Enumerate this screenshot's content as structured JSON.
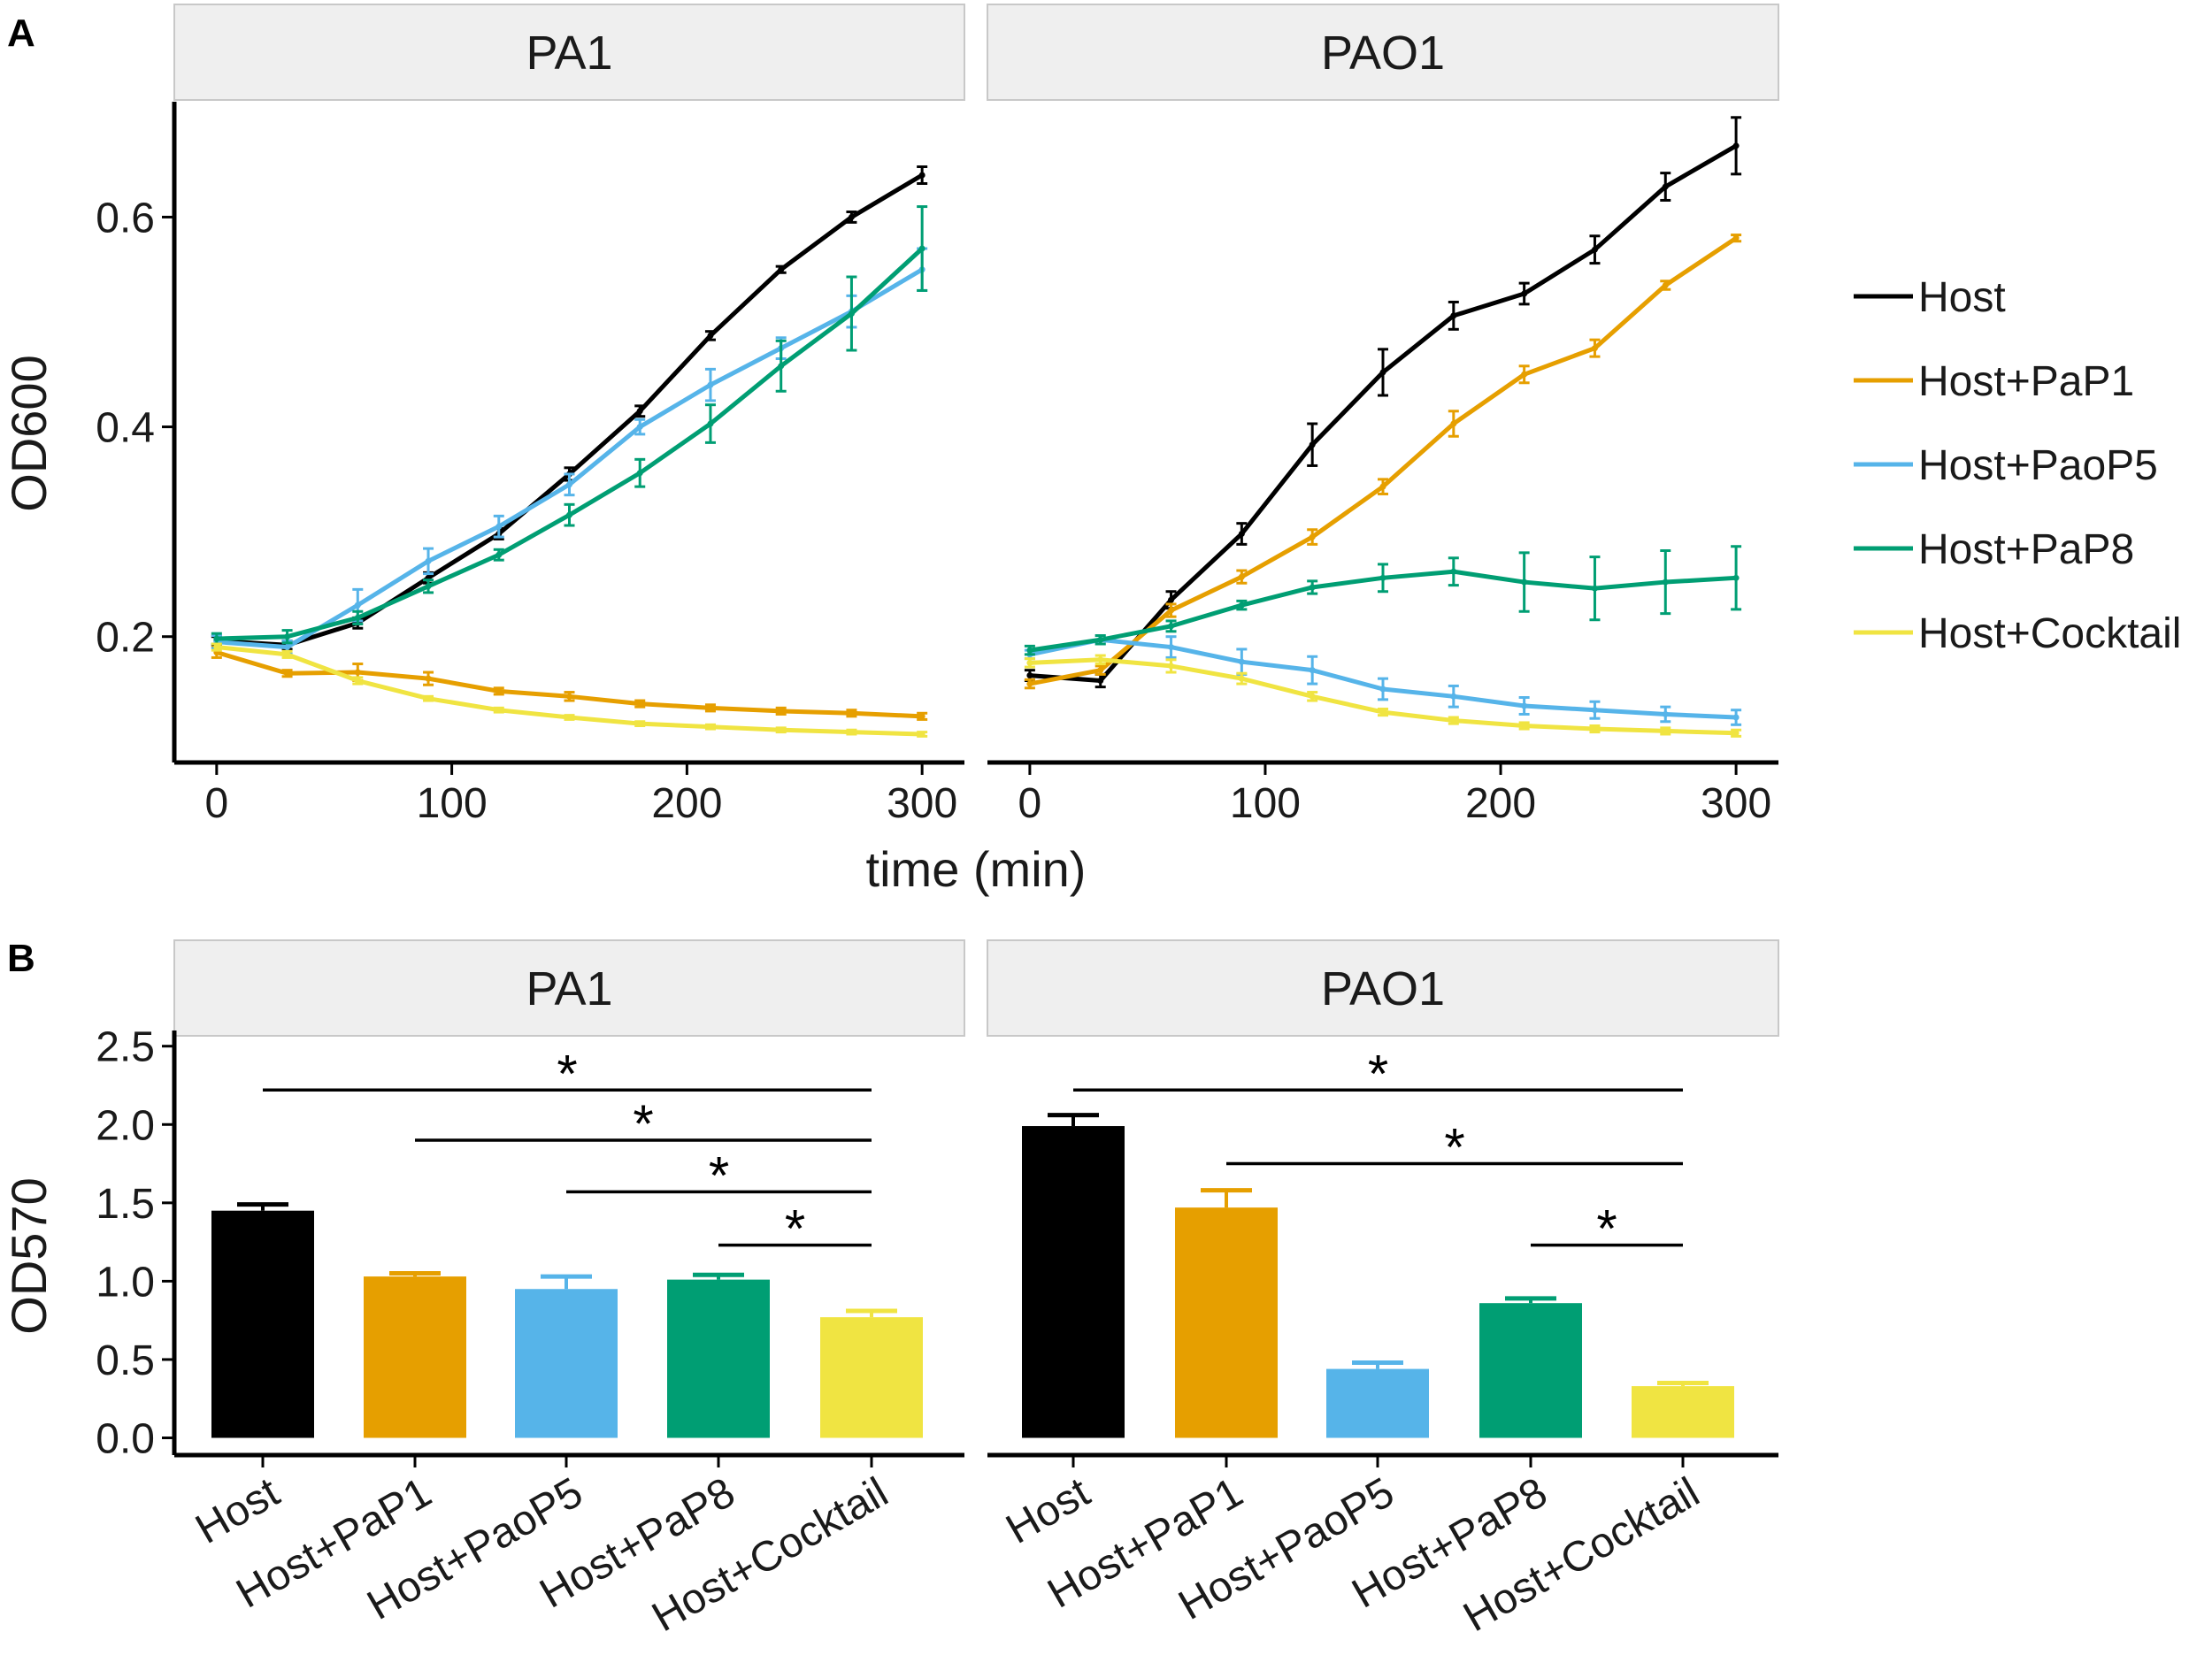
{
  "labels": {
    "panel_a": "A",
    "panel_b": "B"
  },
  "chart_data": [
    {
      "type": "line",
      "title": "",
      "facets": [
        "PA1",
        "PAO1"
      ],
      "xlabel": "time (min)",
      "ylabel": "OD600",
      "xlim": [
        -18,
        318
      ],
      "ylim": [
        0.08,
        0.71
      ],
      "x_ticks": [
        0,
        100,
        200,
        300
      ],
      "y_ticks": [
        0.2,
        0.4,
        0.6
      ],
      "y_tick_labels": [
        "0.2",
        "0.4",
        "0.6"
      ],
      "x": [
        0,
        30,
        60,
        90,
        120,
        150,
        180,
        210,
        240,
        270,
        300
      ],
      "legend": [
        "Host",
        "Host+PaP1",
        "Host+PaoP5",
        "Host+PaP8",
        "Host+Cocktail"
      ],
      "series": [
        {
          "name": "Host",
          "facet": "PA1",
          "color": "#000000",
          "values": [
            0.196,
            0.192,
            0.213,
            0.256,
            0.298,
            0.355,
            0.415,
            0.487,
            0.55,
            0.6,
            0.64
          ],
          "errors": [
            0.004,
            0.004,
            0.005,
            0.005,
            0.005,
            0.006,
            0.005,
            0.004,
            0.003,
            0.005,
            0.008
          ]
        },
        {
          "name": "Host+PaP1",
          "facet": "PA1",
          "color": "#E69F00",
          "values": [
            0.185,
            0.165,
            0.166,
            0.16,
            0.148,
            0.143,
            0.136,
            0.132,
            0.129,
            0.127,
            0.124
          ],
          "errors": [
            0.005,
            0.003,
            0.008,
            0.006,
            0.003,
            0.004,
            0.003,
            0.003,
            0.003,
            0.003,
            0.003
          ]
        },
        {
          "name": "Host+PaoP5",
          "facet": "PA1",
          "color": "#56B4E9",
          "values": [
            0.195,
            0.19,
            0.23,
            0.272,
            0.305,
            0.345,
            0.4,
            0.44,
            0.475,
            0.51,
            0.55
          ],
          "errors": [
            0.006,
            0.006,
            0.015,
            0.012,
            0.01,
            0.01,
            0.007,
            0.015,
            0.01,
            0.015,
            0.02
          ]
        },
        {
          "name": "Host+PaP8",
          "facet": "PA1",
          "color": "#009E73",
          "values": [
            0.198,
            0.2,
            0.218,
            0.248,
            0.278,
            0.316,
            0.356,
            0.403,
            0.458,
            0.508,
            0.57
          ],
          "errors": [
            0.005,
            0.006,
            0.006,
            0.006,
            0.005,
            0.01,
            0.013,
            0.018,
            0.024,
            0.035,
            0.04
          ]
        },
        {
          "name": "Host+Cocktail",
          "facet": "PA1",
          "color": "#F0E442",
          "values": [
            0.19,
            0.183,
            0.158,
            0.141,
            0.13,
            0.123,
            0.117,
            0.114,
            0.111,
            0.109,
            0.107
          ],
          "errors": [
            0.003,
            0.003,
            0.003,
            0.002,
            0.002,
            0.002,
            0.002,
            0.002,
            0.002,
            0.002,
            0.002
          ]
        },
        {
          "name": "Host",
          "facet": "PAO1",
          "color": "#000000",
          "values": [
            0.163,
            0.158,
            0.235,
            0.298,
            0.383,
            0.452,
            0.506,
            0.527,
            0.569,
            0.629,
            0.668
          ],
          "errors": [
            0.005,
            0.006,
            0.008,
            0.01,
            0.02,
            0.022,
            0.013,
            0.01,
            0.013,
            0.013,
            0.027
          ]
        },
        {
          "name": "Host+PaP1",
          "facet": "PAO1",
          "color": "#E69F00",
          "values": [
            0.155,
            0.168,
            0.225,
            0.257,
            0.295,
            0.343,
            0.403,
            0.45,
            0.475,
            0.535,
            0.58
          ],
          "errors": [
            0.004,
            0.004,
            0.006,
            0.006,
            0.007,
            0.007,
            0.012,
            0.008,
            0.008,
            0.004,
            0.003
          ]
        },
        {
          "name": "Host+PaoP5",
          "facet": "PAO1",
          "color": "#56B4E9",
          "values": [
            0.183,
            0.197,
            0.19,
            0.176,
            0.168,
            0.15,
            0.143,
            0.134,
            0.13,
            0.126,
            0.123
          ],
          "errors": [
            0.004,
            0.004,
            0.01,
            0.012,
            0.013,
            0.01,
            0.01,
            0.008,
            0.008,
            0.007,
            0.007
          ]
        },
        {
          "name": "Host+PaP8",
          "facet": "PAO1",
          "color": "#009E73",
          "values": [
            0.187,
            0.197,
            0.21,
            0.23,
            0.247,
            0.256,
            0.262,
            0.252,
            0.246,
            0.252,
            0.256
          ],
          "errors": [
            0.004,
            0.004,
            0.005,
            0.004,
            0.006,
            0.013,
            0.013,
            0.028,
            0.03,
            0.03,
            0.03
          ]
        },
        {
          "name": "Host+Cocktail",
          "facet": "PAO1",
          "color": "#F0E442",
          "values": [
            0.175,
            0.178,
            0.172,
            0.16,
            0.143,
            0.128,
            0.12,
            0.115,
            0.112,
            0.11,
            0.108
          ],
          "errors": [
            0.004,
            0.004,
            0.006,
            0.005,
            0.004,
            0.003,
            0.003,
            0.003,
            0.003,
            0.003,
            0.003
          ]
        }
      ]
    },
    {
      "type": "bar",
      "title": "",
      "facets": [
        "PA1",
        "PAO1"
      ],
      "xlabel": "",
      "ylabel": "OD570",
      "ylim": [
        -0.11,
        2.6
      ],
      "y_ticks": [
        0.0,
        0.5,
        1.0,
        1.5,
        2.0,
        2.5
      ],
      "y_tick_labels": [
        "0.0",
        "0.5",
        "1.0",
        "1.5",
        "2.0",
        "2.5"
      ],
      "categories": [
        "Host",
        "Host+PaP1",
        "Host+PaoP5",
        "Host+PaP8",
        "Host+Cocktail"
      ],
      "colors": [
        "#000000",
        "#E69F00",
        "#56B4E9",
        "#009E73",
        "#F0E442"
      ],
      "series": [
        {
          "name": "PA1",
          "values": [
            1.45,
            1.03,
            0.95,
            1.01,
            0.77
          ],
          "errors": [
            0.04,
            0.02,
            0.08,
            0.03,
            0.04
          ]
        },
        {
          "name": "PAO1",
          "values": [
            1.99,
            1.47,
            0.44,
            0.86,
            0.33
          ],
          "errors": [
            0.07,
            0.11,
            0.04,
            0.03,
            0.02
          ]
        }
      ],
      "significance": [
        {
          "facet": "PA1",
          "from": "Host",
          "to": "Host+Cocktail",
          "y": 2.22,
          "label": "*"
        },
        {
          "facet": "PA1",
          "from": "Host+PaP1",
          "to": "Host+Cocktail",
          "y": 1.9,
          "label": "*"
        },
        {
          "facet": "PA1",
          "from": "Host+PaoP5",
          "to": "Host+Cocktail",
          "y": 1.57,
          "label": "*"
        },
        {
          "facet": "PA1",
          "from": "Host+PaP8",
          "to": "Host+Cocktail",
          "y": 1.23,
          "label": "*"
        },
        {
          "facet": "PAO1",
          "from": "Host",
          "to": "Host+Cocktail",
          "y": 2.22,
          "label": "*"
        },
        {
          "facet": "PAO1",
          "from": "Host+PaP1",
          "to": "Host+Cocktail",
          "y": 1.75,
          "label": "*"
        },
        {
          "facet": "PAO1",
          "from": "Host+PaP8",
          "to": "Host+Cocktail",
          "y": 1.23,
          "label": "*"
        }
      ]
    }
  ]
}
